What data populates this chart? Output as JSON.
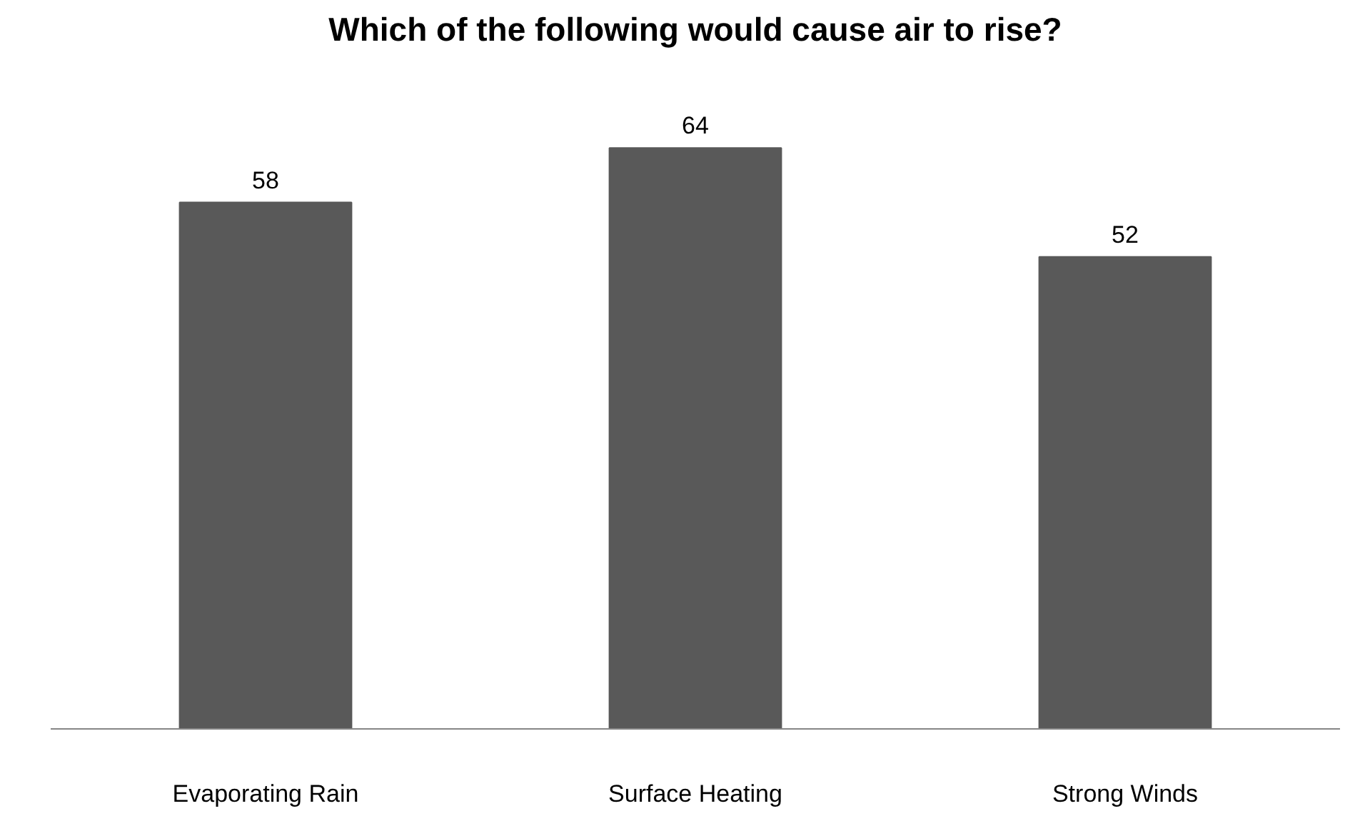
{
  "chart_data": {
    "type": "bar",
    "title": "Which of the following would cause air to rise?",
    "categories": [
      "Evaporating Rain",
      "Surface Heating",
      "Strong Winds"
    ],
    "values": [
      58,
      64,
      52
    ],
    "color": "#595959",
    "data_labels": true
  }
}
